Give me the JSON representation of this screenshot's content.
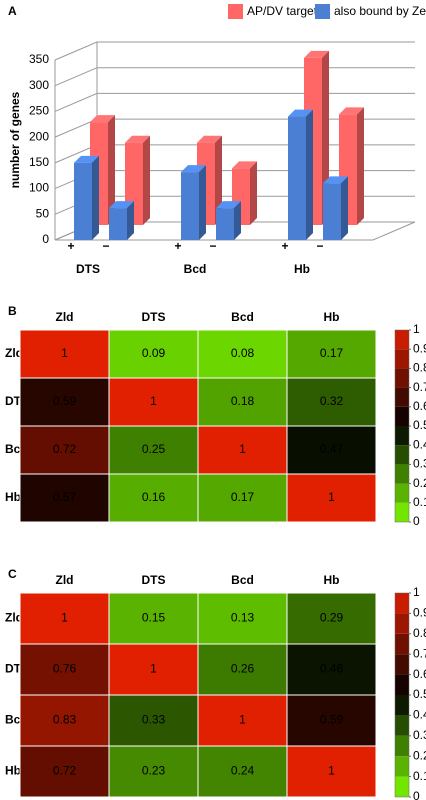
{
  "chart_data": [
    {
      "type": "bar3d",
      "panel_label": "A",
      "ylabel": "number of genes",
      "categories": [
        "+",
        "−",
        "+",
        "−",
        "+",
        "−"
      ],
      "groups": [
        "DTS",
        "Bcd",
        "Hb"
      ],
      "series": [
        {
          "name": "AP/DV targets",
          "color": "#ff6666",
          "values": [
            200,
            160,
            160,
            110,
            325,
            215
          ]
        },
        {
          "name": "also bound by Zelda",
          "color": "#4a7fd4",
          "values": [
            150,
            62,
            132,
            62,
            240,
            110
          ]
        }
      ],
      "ylim": [
        0,
        350
      ],
      "yticks": [
        0,
        50,
        100,
        150,
        200,
        250,
        300,
        350
      ],
      "grid": true,
      "legend": "top-right"
    },
    {
      "type": "heatmap",
      "panel_label": "B",
      "rows": [
        "Zld",
        "DTS",
        "Bcd",
        "Hb"
      ],
      "columns": [
        "Zld",
        "DTS",
        "Bcd",
        "Hb"
      ],
      "values": [
        [
          1,
          0.09,
          0.08,
          0.17
        ],
        [
          0.59,
          1,
          0.18,
          0.32
        ],
        [
          0.72,
          0.25,
          1,
          0.47
        ],
        [
          0.57,
          0.16,
          0.17,
          1
        ]
      ],
      "zlim": [
        0,
        1
      ],
      "zticks": [
        0,
        0.1,
        0.2,
        0.3,
        0.4,
        0.5,
        0.6,
        0.7,
        0.8,
        0.9,
        1
      ],
      "colors": [
        "#80ff00",
        "#000000",
        "#e02000"
      ]
    },
    {
      "type": "heatmap",
      "panel_label": "C",
      "rows": [
        "Zld",
        "DTS",
        "Bcd",
        "Hb"
      ],
      "columns": [
        "Zld",
        "DTS",
        "Bcd",
        "Hb"
      ],
      "values": [
        [
          1,
          0.15,
          0.13,
          0.29
        ],
        [
          0.76,
          1,
          0.26,
          0.46
        ],
        [
          0.83,
          0.33,
          1,
          0.59
        ],
        [
          0.72,
          0.23,
          0.24,
          1
        ]
      ],
      "zlim": [
        0,
        1
      ],
      "zticks": [
        0,
        0.1,
        0.2,
        0.3,
        0.4,
        0.5,
        0.6,
        0.7,
        0.8,
        0.9,
        1
      ],
      "colors": [
        "#80ff00",
        "#000000",
        "#e02000"
      ]
    }
  ]
}
